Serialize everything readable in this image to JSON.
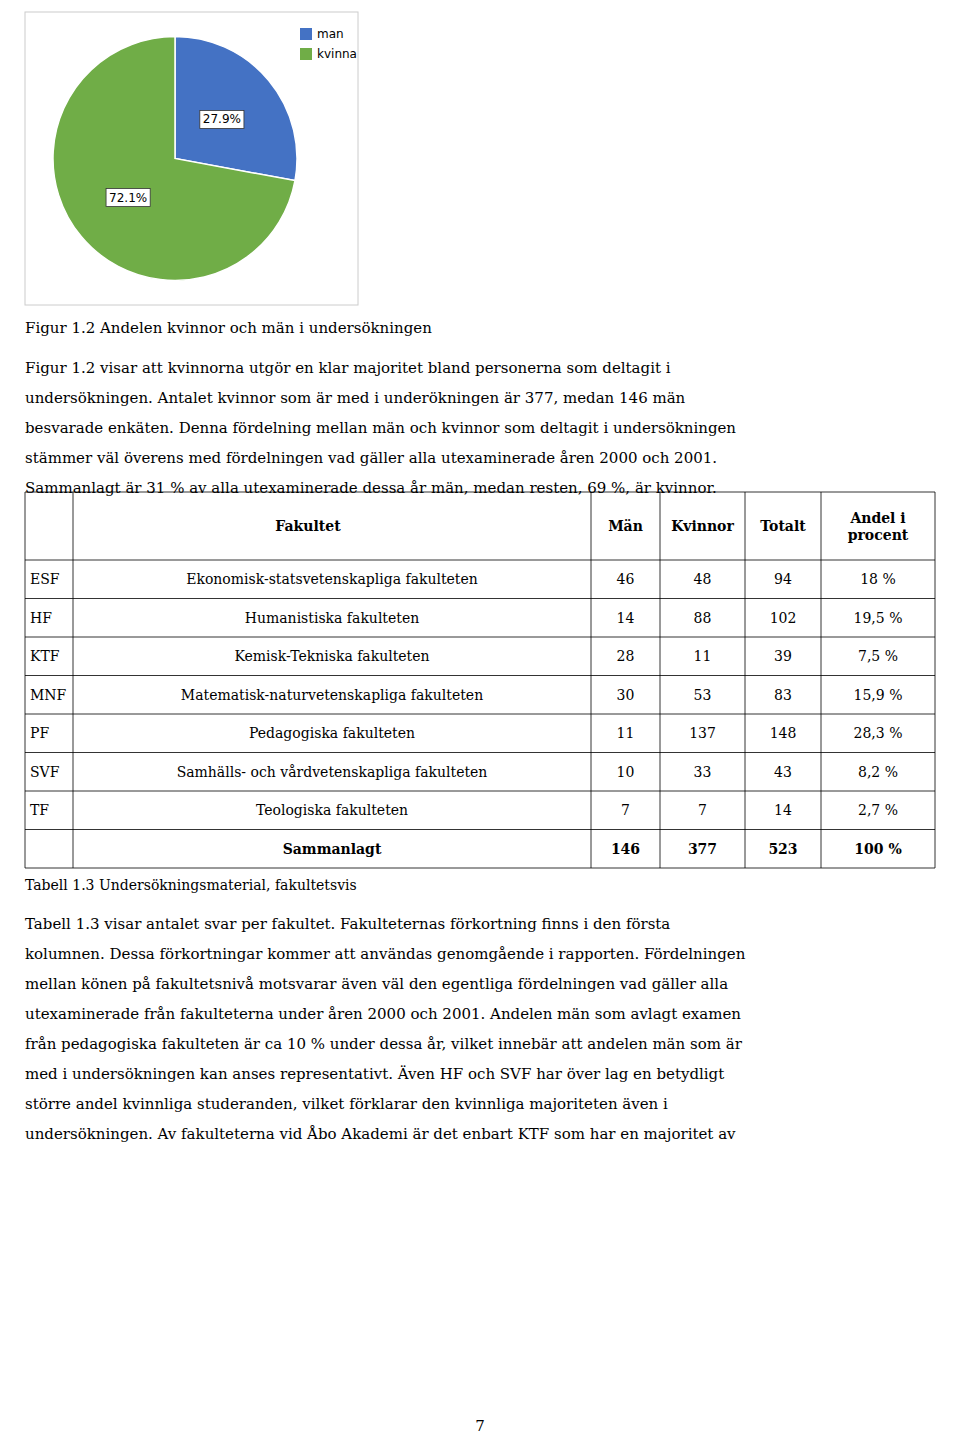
{
  "chart_data": {
    "type": "pie",
    "title": "Figur 1.2 Andelen kvinnor och män i undersökningen",
    "categories": [
      "man",
      "kvinna"
    ],
    "values": [
      27.9,
      72.1
    ],
    "value_labels": [
      "27.9%",
      "72.1%"
    ],
    "colors": [
      "#4472C4",
      "#70AD47"
    ],
    "data_labels": true,
    "legend": "upper right"
  },
  "paragraphs": [
    [
      "Figur 1.2 visar att kvinnorna utgör en klar majoritet bland personerna som deltagit i",
      "undersökningen. Antalet kvinnor som är med i underökningen är 377, medan 146 män",
      "besvarade enkäten. Denna fördelning mellan män och kvinnor som deltagit i undersökningen",
      "stämmer väl överens med fördelningen vad gäller alla utexaminerade åren 2000 och 2001.",
      "Sammanlagt är 31 % av alla utexaminerade dessa år män, medan resten, 69 %, är kvinnor."
    ],
    [
      "Tabell 1.3 visar antalet svar per fakultet. Fakulteternas förkortning finns i den första",
      "kolumnen. Dessa förkortningar kommer att användas genomgående i rapporten. Fördelningen",
      "mellan könen på fakultetsnivå motsvarar även väl den egentliga fördelningen vad gäller alla",
      "utexaminerade från fakulteterna under åren 2000 och 2001. Andelen män som avlagt examen",
      "från pedagogiska fakulteten är ca 10 % under dessa år, vilket innebär att andelen män som är",
      "med i undersökningen kan anses representativt. Även HF och SVF har över lag en betydligt",
      "större andel kvinnliga studeranden, vilket förklarar den kvinnliga majoriteten även i",
      "undersökningen. Av fakulteterna vid Åbo Akademi är det enbart KTF som har en majoritet av"
    ]
  ],
  "table": {
    "caption": "Tabell 1.3 Undersökningsmaterial, fakultetsvis",
    "header": [
      "Fakultet",
      "Män",
      "Kvinnor",
      "Totalt",
      "Andel i\nprocent"
    ],
    "rows": [
      [
        "ESF",
        "Ekonomisk-statsvetenskapliga fakulteten",
        "46",
        "48",
        "94",
        "18 %"
      ],
      [
        "HF",
        "Humanistiska fakulteten",
        "14",
        "88",
        "102",
        "19,5 %"
      ],
      [
        "KTF",
        "Kemisk-Tekniska fakulteten",
        "28",
        "11",
        "39",
        "7,5 %"
      ],
      [
        "MNF",
        "Matematisk-naturvetenskapliga fakulteten",
        "30",
        "53",
        "83",
        "15,9 %"
      ],
      [
        "PF",
        "Pedagogiska fakulteten",
        "11",
        "137",
        "148",
        "28,3 %"
      ],
      [
        "SVF",
        "Samhälls- och vårdvetenskapliga fakulteten",
        "10",
        "33",
        "43",
        "8,2 %"
      ],
      [
        "TF",
        "Teologiska fakulteten",
        "7",
        "7",
        "14",
        "2,7 %"
      ],
      [
        "",
        "Sammanlagt",
        "146",
        "377",
        "523",
        "100 %"
      ]
    ]
  },
  "page_number": "7"
}
